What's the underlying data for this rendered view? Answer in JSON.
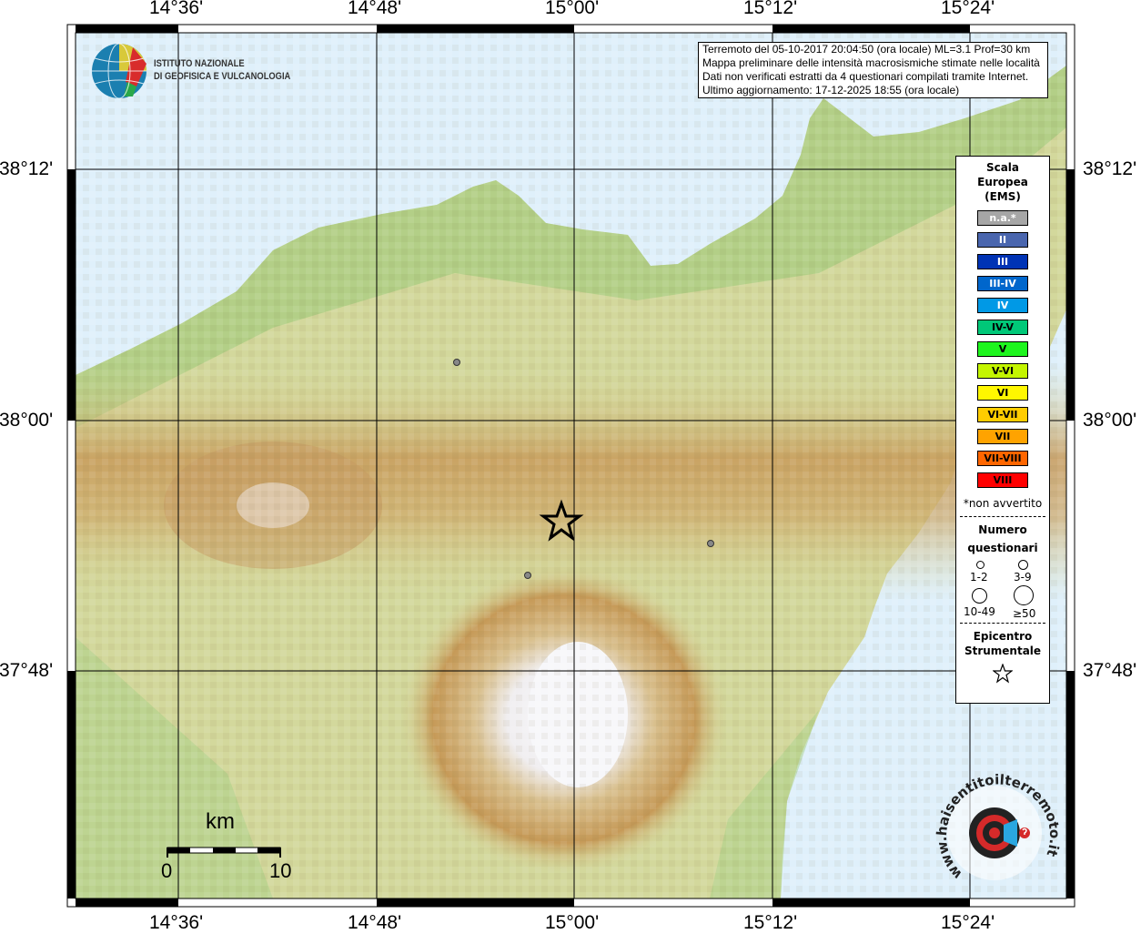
{
  "map": {
    "lon_ticks": [
      "14°36'",
      "14°48'",
      "15°00'",
      "15°12'",
      "15°24'"
    ],
    "lat_ticks": [
      "38°12'",
      "38°00'",
      "37°48'"
    ],
    "colors": {
      "sea": "#dff0fb",
      "land": "#c9d79a",
      "mountain": "#c79a55",
      "summit": "#f6f6f8"
    },
    "epicenter_marker": "star-icon",
    "locality_markers": 3
  },
  "info_box": {
    "line1": "Terremoto del 05-10-2017 20:04:50 (ora locale) ML=3.1 Prof=30 km",
    "line2": "Mappa preliminare delle intensità macrosismiche stimate nelle località",
    "line3": "Dati non verificati estratti da 4 questionari compilati tramite Internet.",
    "line4": "Ultimo aggiornamento: 17-12-2025 18:55 (ora locale)"
  },
  "logo": {
    "line1": "ISTITUTO NAZIONALE",
    "line2": "DI GEOFISICA E VULCANOLOGIA",
    "haisentito": "www.haisentitoilterremoto.it"
  },
  "legend": {
    "title": [
      "Scala",
      "Europea",
      "(EMS)"
    ],
    "scale": [
      {
        "label": "n.a.*",
        "color": "#a6a6a6",
        "text": "#ffffff"
      },
      {
        "label": "II",
        "color": "#4a66ae",
        "text": "#ffffff"
      },
      {
        "label": "III",
        "color": "#0033b5",
        "text": "#ffffff"
      },
      {
        "label": "III-IV",
        "color": "#0066cc",
        "text": "#ffffff"
      },
      {
        "label": "IV",
        "color": "#0099e6",
        "text": "#ffffff"
      },
      {
        "label": "IV-V",
        "color": "#00c878",
        "text": "#000000"
      },
      {
        "label": "V",
        "color": "#1ef51e",
        "text": "#000000"
      },
      {
        "label": "V-VI",
        "color": "#c4f500",
        "text": "#000000"
      },
      {
        "label": "VI",
        "color": "#fff700",
        "text": "#000000"
      },
      {
        "label": "VI-VII",
        "color": "#ffcc00",
        "text": "#000000"
      },
      {
        "label": "VII",
        "color": "#ffa300",
        "text": "#000000"
      },
      {
        "label": "VII-VIII",
        "color": "#ff6600",
        "text": "#000000"
      },
      {
        "label": "VIII",
        "color": "#ff0000",
        "text": "#000000"
      }
    ],
    "note": "*non avvertito",
    "questionnaires_title": [
      "Numero",
      "questionari"
    ],
    "sizes": [
      "1-2",
      "3-9",
      "10-49",
      "≥50"
    ],
    "epicenter_title": [
      "Epicentro",
      "Strumentale"
    ]
  },
  "scalebar": {
    "unit": "km",
    "start": "0",
    "end": "10"
  }
}
